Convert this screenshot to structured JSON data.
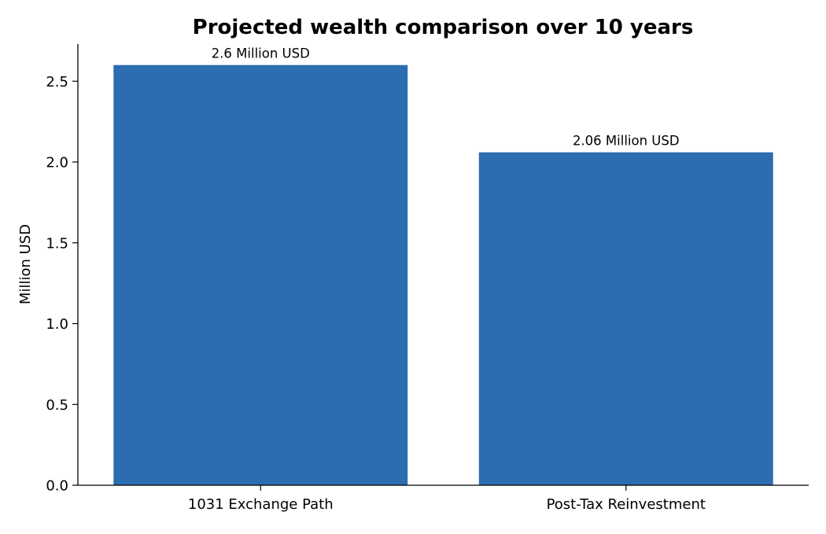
{
  "chart_data": {
    "type": "bar",
    "title": "Projected wealth comparison over 10 years",
    "xlabel": "",
    "ylabel": "Million USD",
    "categories": [
      "1031 Exchange Path",
      "Post-Tax Reinvestment"
    ],
    "values": [
      2.6,
      2.06
    ],
    "data_labels": [
      "2.6 Million USD",
      "2.06 Million USD"
    ],
    "ylim": [
      0,
      2.73
    ],
    "yticks": [
      0.0,
      0.5,
      1.0,
      1.5,
      2.0,
      2.5
    ],
    "ytick_labels": [
      "0.0",
      "0.5",
      "1.0",
      "1.5",
      "2.0",
      "2.5"
    ],
    "grid": false,
    "bar_color": "#2c6cb0",
    "axis_color": "#000000"
  }
}
